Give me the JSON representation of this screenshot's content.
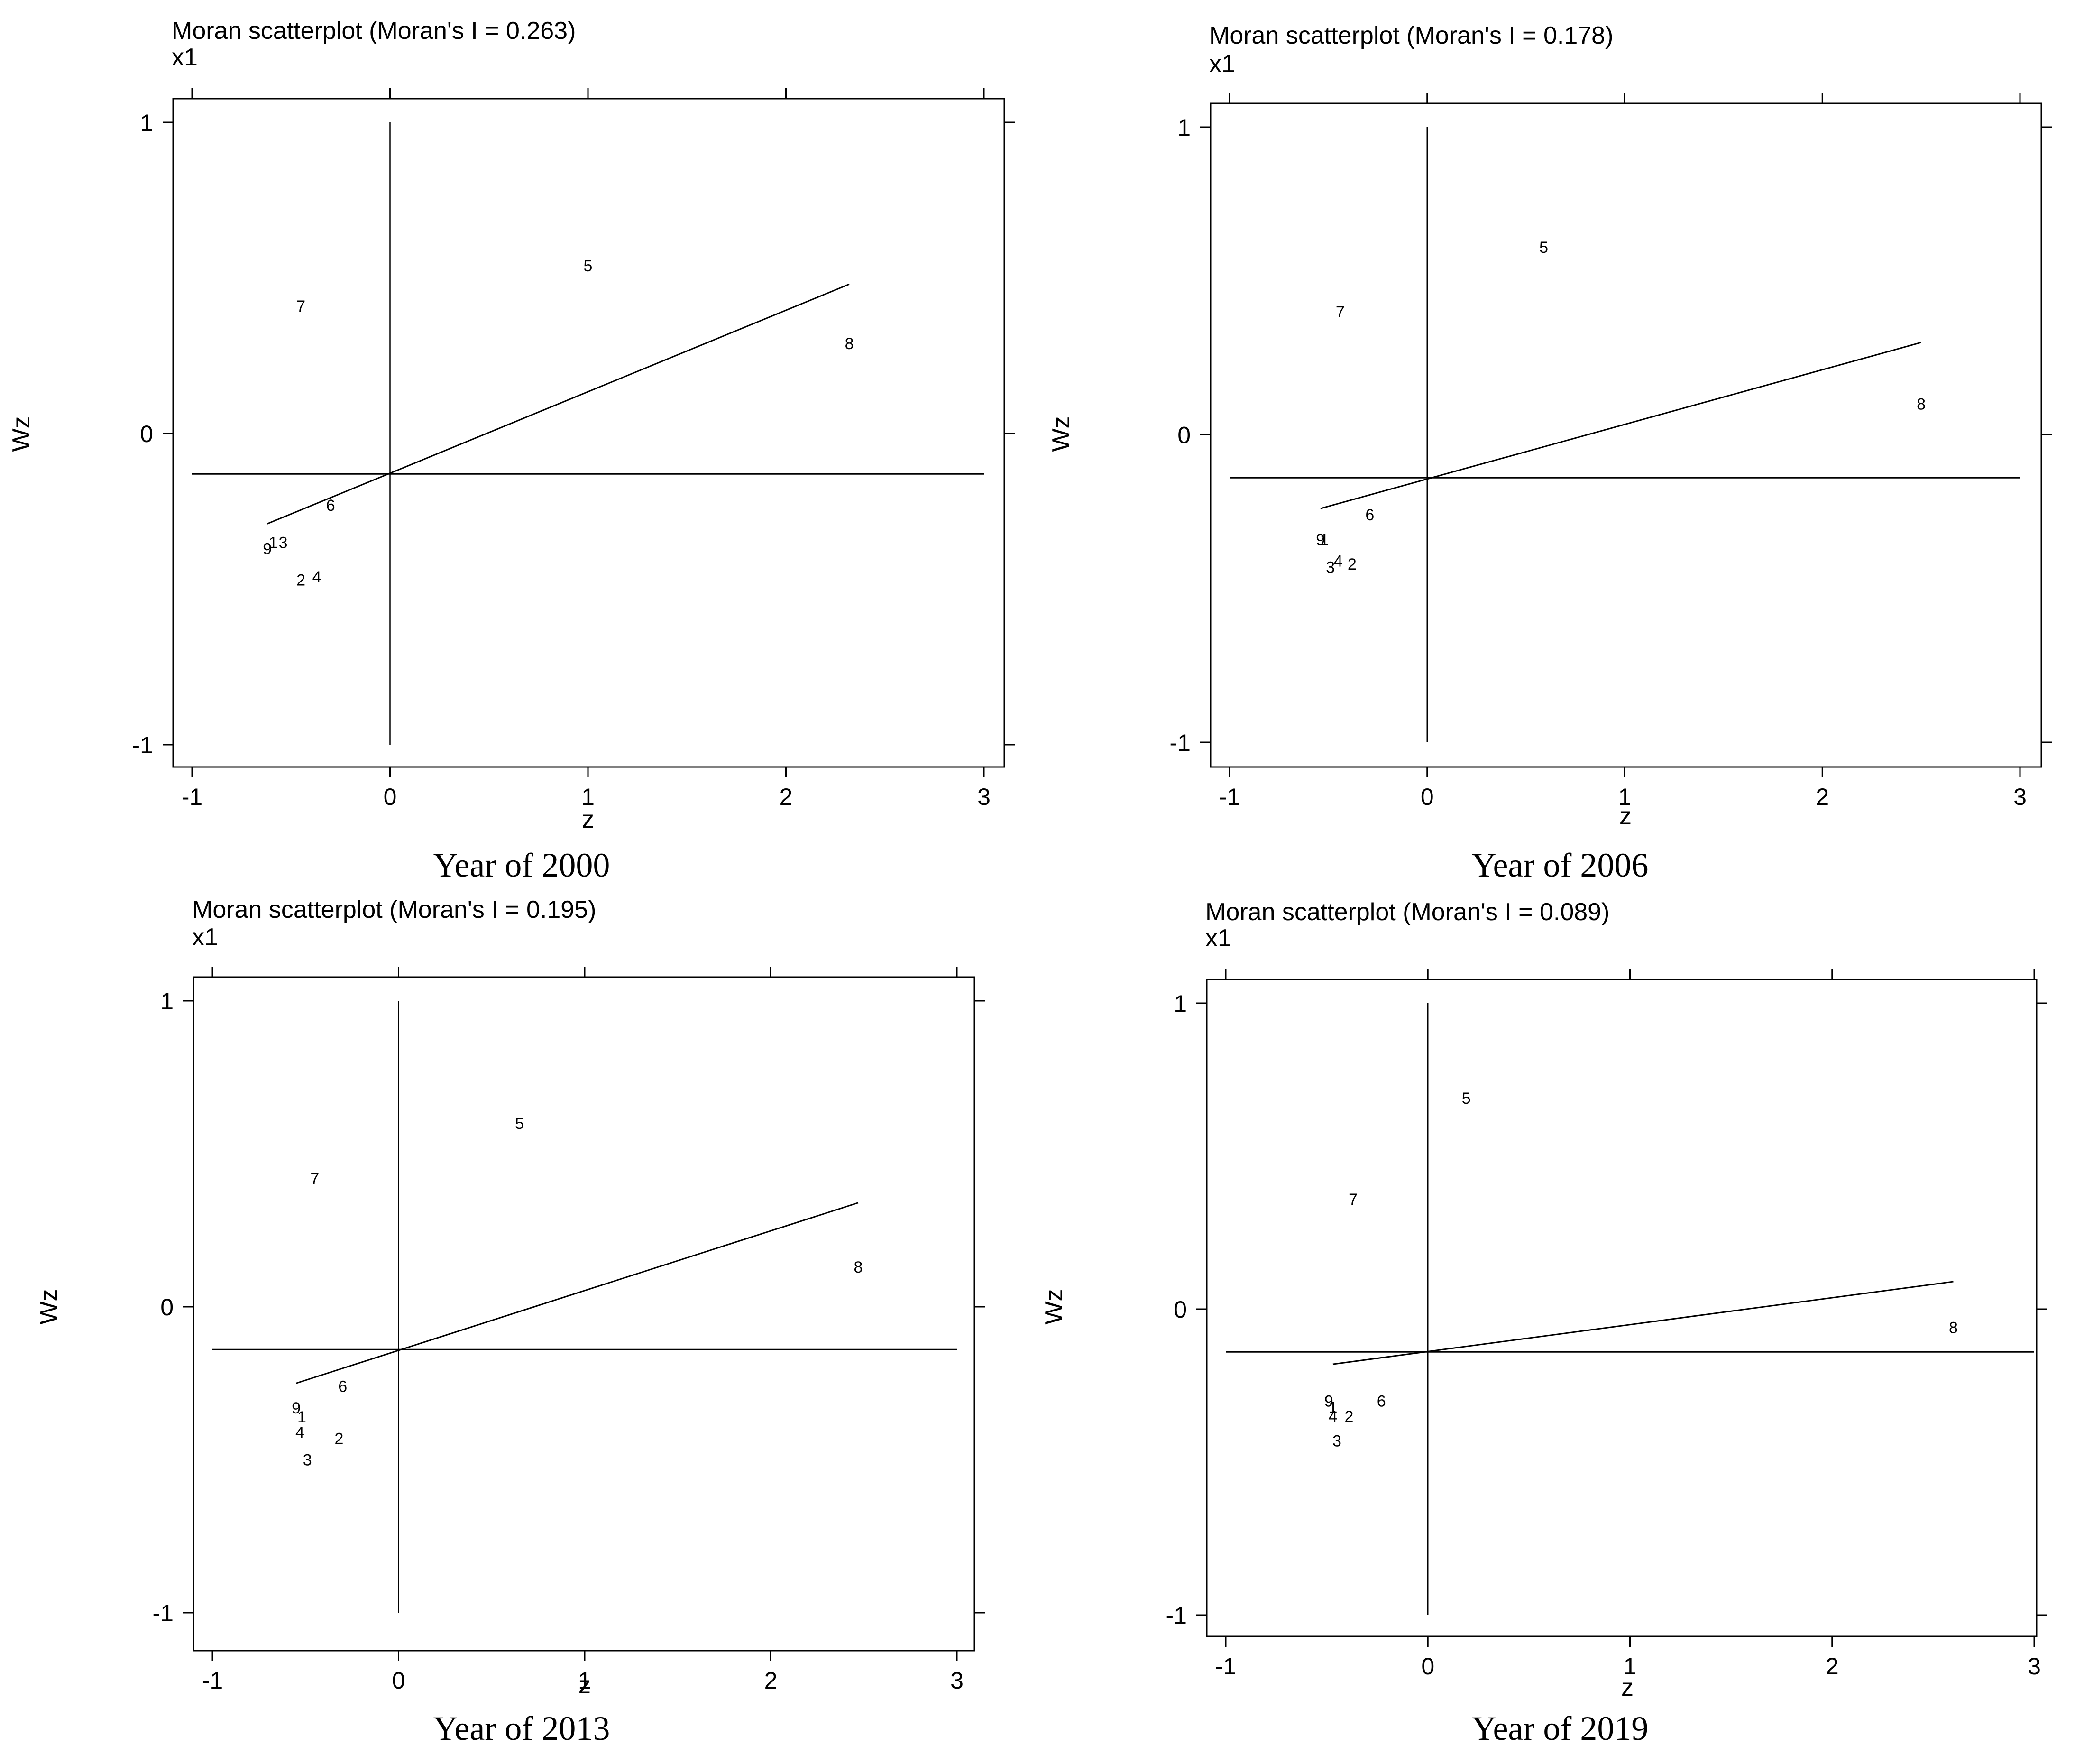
{
  "chart_data": [
    {
      "type": "scatter",
      "title": "Moran scatterplot (Moran's I = 0.263)",
      "variable": "x1",
      "xlabel": "z",
      "ylabel": "Wz",
      "caption": "Year of 2000",
      "xlim": [
        -1,
        3
      ],
      "ylim": [
        -1,
        1
      ],
      "xticks": [
        "-1",
        "0",
        "1",
        "2",
        "3"
      ],
      "yticks": [
        "-1",
        "0",
        "1"
      ],
      "points": [
        {
          "label": "1",
          "x": -0.59,
          "y": -0.35
        },
        {
          "label": "2",
          "x": -0.45,
          "y": -0.47
        },
        {
          "label": "3",
          "x": -0.54,
          "y": -0.35
        },
        {
          "label": "4",
          "x": -0.37,
          "y": -0.46
        },
        {
          "label": "5",
          "x": 1.0,
          "y": 0.54
        },
        {
          "label": "6",
          "x": -0.3,
          "y": -0.23
        },
        {
          "label": "7",
          "x": -0.45,
          "y": 0.41
        },
        {
          "label": "8",
          "x": 2.32,
          "y": 0.29
        },
        {
          "label": "9",
          "x": -0.62,
          "y": -0.37
        }
      ],
      "fit_line": {
        "x": [
          -0.62,
          2.32
        ],
        "y": [
          -0.29,
          0.48
        ]
      },
      "hline": -0.13
    },
    {
      "type": "scatter",
      "title": "Moran scatterplot (Moran's I = 0.178)",
      "variable": "x1",
      "xlabel": "z",
      "ylabel": "Wz",
      "caption": "Year of 2006",
      "xlim": [
        -1,
        3
      ],
      "ylim": [
        -1,
        1
      ],
      "xticks": [
        "-1",
        "0",
        "1",
        "2",
        "3"
      ],
      "yticks": [
        "-1",
        "0",
        "1"
      ],
      "points": [
        {
          "label": "1",
          "x": -0.52,
          "y": -0.34
        },
        {
          "label": "2",
          "x": -0.38,
          "y": -0.42
        },
        {
          "label": "3",
          "x": -0.49,
          "y": -0.43
        },
        {
          "label": "4",
          "x": -0.45,
          "y": -0.41
        },
        {
          "label": "5",
          "x": 0.59,
          "y": 0.61
        },
        {
          "label": "6",
          "x": -0.29,
          "y": -0.26
        },
        {
          "label": "7",
          "x": -0.44,
          "y": 0.4
        },
        {
          "label": "8",
          "x": 2.5,
          "y": 0.1
        },
        {
          "label": "9",
          "x": -0.54,
          "y": -0.34
        }
      ],
      "fit_line": {
        "x": [
          -0.54,
          2.5
        ],
        "y": [
          -0.24,
          0.3
        ]
      },
      "hline": -0.14
    },
    {
      "type": "scatter",
      "title": "Moran scatterplot (Moran's I = 0.195)",
      "variable": "x1",
      "xlabel": "z",
      "ylabel": "Wz",
      "caption": "Year of 2013",
      "xlim": [
        -1,
        3
      ],
      "ylim": [
        -1,
        1
      ],
      "xticks": [
        "-1",
        "0",
        "1",
        "2",
        "3"
      ],
      "yticks": [
        "-1",
        "0",
        "1"
      ],
      "points": [
        {
          "label": "1",
          "x": -0.52,
          "y": -0.36
        },
        {
          "label": "2",
          "x": -0.32,
          "y": -0.43
        },
        {
          "label": "3",
          "x": -0.49,
          "y": -0.5
        },
        {
          "label": "4",
          "x": -0.53,
          "y": -0.41
        },
        {
          "label": "5",
          "x": 0.65,
          "y": 0.6
        },
        {
          "label": "6",
          "x": -0.3,
          "y": -0.26
        },
        {
          "label": "7",
          "x": -0.45,
          "y": 0.42
        },
        {
          "label": "8",
          "x": 2.47,
          "y": 0.13
        },
        {
          "label": "9",
          "x": -0.55,
          "y": -0.33
        }
      ],
      "fit_line": {
        "x": [
          -0.55,
          2.47
        ],
        "y": [
          -0.25,
          0.34
        ]
      },
      "hline": -0.14
    },
    {
      "type": "scatter",
      "title": "Moran scatterplot (Moran's I = 0.089)",
      "variable": "x1",
      "xlabel": "z",
      "ylabel": "Wz",
      "caption": "Year of 2019",
      "xlim": [
        -1,
        3
      ],
      "ylim": [
        -1,
        1
      ],
      "xticks": [
        "-1",
        "0",
        "1",
        "2",
        "3"
      ],
      "yticks": [
        "-1",
        "0",
        "1"
      ],
      "points": [
        {
          "label": "1",
          "x": -0.47,
          "y": -0.32
        },
        {
          "label": "2",
          "x": -0.39,
          "y": -0.35
        },
        {
          "label": "3",
          "x": -0.45,
          "y": -0.43
        },
        {
          "label": "4",
          "x": -0.47,
          "y": -0.35
        },
        {
          "label": "5",
          "x": 0.19,
          "y": 0.69
        },
        {
          "label": "6",
          "x": -0.23,
          "y": -0.3
        },
        {
          "label": "7",
          "x": -0.37,
          "y": 0.36
        },
        {
          "label": "8",
          "x": 2.6,
          "y": -0.06
        },
        {
          "label": "9",
          "x": -0.49,
          "y": -0.3
        }
      ],
      "fit_line": {
        "x": [
          -0.47,
          2.6
        ],
        "y": [
          -0.18,
          0.09
        ]
      },
      "hline": -0.14
    }
  ]
}
